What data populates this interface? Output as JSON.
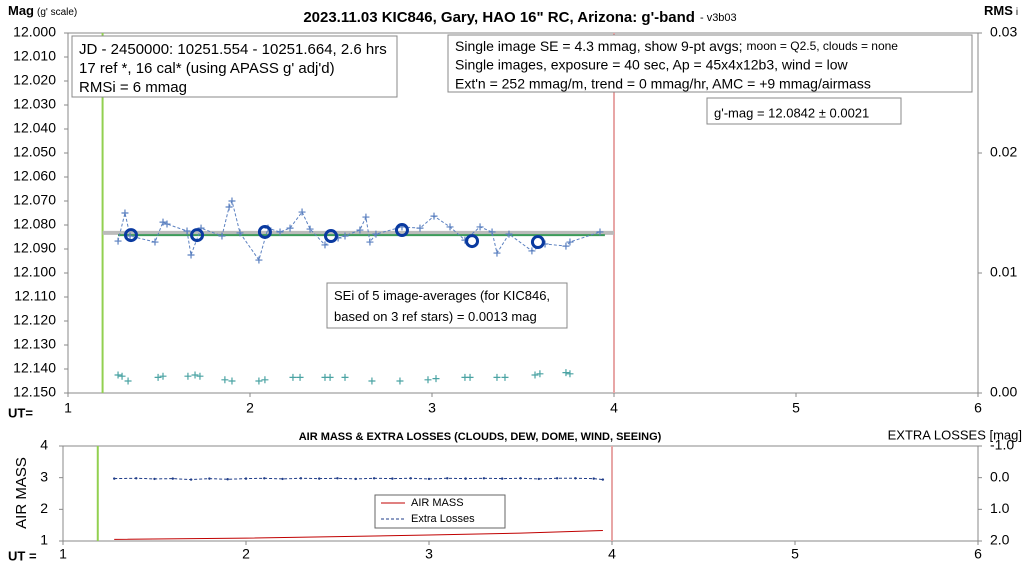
{
  "chart_data": [
    {
      "type": "scatter",
      "title": "2023.11.03 KIC846, Gary, HAO 16\" RC, Arizona: g'-band",
      "subtitle": "- v3b03",
      "ylabel": "Mag",
      "ylabel_note": "(g' scale)",
      "y2label": "RMS",
      "y2label_note": "i",
      "xlabel": "UT=",
      "xlim": [
        1,
        6
      ],
      "xticks": [
        1,
        2,
        3,
        4,
        5,
        6
      ],
      "ylim": [
        12.15,
        12.0
      ],
      "yticks": [
        {
          "value": 12.0,
          "label": "12.000"
        },
        {
          "value": 12.01,
          "label": "12.010"
        },
        {
          "value": 12.02,
          "label": "12.020"
        },
        {
          "value": 12.03,
          "label": "12.030"
        },
        {
          "value": 12.04,
          "label": "12.040"
        },
        {
          "value": 12.05,
          "label": "12.050"
        },
        {
          "value": 12.06,
          "label": "12.060"
        },
        {
          "value": 12.07,
          "label": "12.070"
        },
        {
          "value": 12.08,
          "label": "12.080"
        },
        {
          "value": 12.09,
          "label": "12.090"
        },
        {
          "value": 12.1,
          "label": "12.100"
        },
        {
          "value": 12.11,
          "label": "12.110"
        },
        {
          "value": 12.12,
          "label": "12.120"
        },
        {
          "value": 12.13,
          "label": "12.130"
        },
        {
          "value": 12.14,
          "label": "12.140"
        },
        {
          "value": 12.15,
          "label": "12.150"
        }
      ],
      "y2lim": [
        0,
        0.03
      ],
      "y2ticks": [
        {
          "value": 0,
          "label": "0.00"
        },
        {
          "value": 0.01,
          "label": "0.01"
        },
        {
          "value": 0.02,
          "label": "0.02"
        },
        {
          "value": 0.03,
          "label": "0.03"
        }
      ],
      "vlines": [
        {
          "x": 1.19,
          "color": "#92d050"
        },
        {
          "x": 4.0,
          "color": "#e8a6a6"
        }
      ],
      "series": [
        {
          "color": "#bbbbbb",
          "line": "solid",
          "line_width": 4,
          "x": [
            1.19,
            4.0
          ],
          "values": [
            12.0833,
            12.0833
          ]
        },
        {
          "color": "#3c9b5a",
          "line": "solid",
          "line_width": 2,
          "x": [
            1.275,
            3.95
          ],
          "values": [
            12.0842,
            12.0842
          ]
        },
        {
          "color": "#5b80c0",
          "line": "dashed",
          "marker": "plus",
          "line_width": 1,
          "x": [
            1.275,
            1.313,
            1.341,
            1.478,
            1.522,
            1.544,
            1.654,
            1.676,
            1.731,
            1.846,
            1.885,
            1.901,
            1.945,
            2.049,
            2.099,
            2.165,
            2.22,
            2.286,
            2.33,
            2.412,
            2.484,
            2.522,
            2.604,
            2.637,
            2.659,
            2.692,
            2.835,
            2.934,
            3.011,
            3.099,
            3.181,
            3.264,
            3.33,
            3.357,
            3.423,
            3.549,
            3.621,
            3.736,
            3.758,
            3.923
          ],
          "values": [
            12.0867,
            12.075,
            12.0846,
            12.0871,
            12.0788,
            12.0796,
            12.0825,
            12.0925,
            12.0813,
            12.0846,
            12.0725,
            12.07,
            12.0833,
            12.0946,
            12.0813,
            12.0829,
            12.0813,
            12.0746,
            12.0817,
            12.0883,
            12.0854,
            12.0846,
            12.0821,
            12.0767,
            12.0871,
            12.0838,
            12.0808,
            12.0813,
            12.0763,
            12.0808,
            12.0863,
            12.0808,
            12.0829,
            12.0917,
            12.0838,
            12.0908,
            12.0879,
            12.0888,
            12.0871,
            12.0829
          ]
        },
        {
          "color": "#0a3aa0",
          "marker": "circle",
          "x": [
            1.346,
            1.709,
            2.082,
            2.445,
            2.835,
            3.22,
            3.582
          ],
          "values": [
            12.0842,
            12.0842,
            12.0829,
            12.0846,
            12.0821,
            12.0867,
            12.0871
          ]
        },
        {
          "color": "#4aa3a3",
          "marker": "plus",
          "axis": "y2",
          "x": [
            1.275,
            1.297,
            1.33,
            1.495,
            1.522,
            1.659,
            1.698,
            1.725,
            1.862,
            1.901,
            2.049,
            2.082,
            2.236,
            2.275,
            2.412,
            2.44,
            2.522,
            2.67,
            2.824,
            2.978,
            3.022,
            3.181,
            3.209,
            3.357,
            3.401,
            3.566,
            3.593,
            3.736,
            3.758
          ],
          "values": [
            0.0015,
            0.0014,
            0.001,
            0.0013,
            0.0014,
            0.0014,
            0.0015,
            0.0014,
            0.0011,
            0.001,
            0.001,
            0.0011,
            0.0013,
            0.0013,
            0.0013,
            0.0013,
            0.0013,
            0.001,
            0.001,
            0.0011,
            0.0012,
            0.0013,
            0.0013,
            0.0013,
            0.0013,
            0.0015,
            0.0016,
            0.0017,
            0.0016
          ]
        }
      ],
      "annotations": [
        {
          "lines": [
            "JD - 2450000: 10251.554 - 10251.664, 2.6 hrs",
            "17 ref *, 16 cal* (using APASS g' adj'd)",
            "RMSi = 6 mmag"
          ]
        },
        {
          "lines": [
            [
              "Single image SE = 4.3 mmag, show  9-pt avgs;",
              "moon = Q2.5, clouds = none"
            ],
            "Single images, exposure = 40 sec, Ap = 45x4x12b3, wind = low",
            "Ext'n = 252 mmag/m, trend = 0 mmag/hr, AMC = +9 mmag/airmass"
          ]
        },
        {
          "lines": [
            "g'-mag = 12.0842 ± 0.0021"
          ]
        },
        {
          "lines": [
            "SEi of 5 image-averages (for KIC846,",
            "based on 3 ref stars) = 0.0013 mag"
          ]
        }
      ]
    },
    {
      "type": "line",
      "title": "AIR MASS & EXTRA LOSSES (CLOUDS, DEW, DOME, WIND, SEEING)",
      "ylabel": "AIR MASS",
      "y2label": "EXTRA LOSSES [mag]",
      "xlabel": "UT =",
      "xlim": [
        1,
        6
      ],
      "xticks": [
        1,
        2,
        3,
        4,
        5,
        6
      ],
      "ylim": [
        1,
        4
      ],
      "yticks": [
        1,
        2,
        3,
        4
      ],
      "y2lim": [
        2,
        -1
      ],
      "y2ticks": [
        {
          "value": -1,
          "label": "-1.0"
        },
        {
          "value": 0,
          "label": "0.0"
        },
        {
          "value": 1,
          "label": "1.0"
        },
        {
          "value": 2,
          "label": "2.0"
        }
      ],
      "vlines": [
        {
          "x": 1.19,
          "color": "#92d050"
        },
        {
          "x": 4.0,
          "color": "#e8a6a6"
        }
      ],
      "legend": "bottom-center",
      "series": [
        {
          "name": "AIR MASS",
          "color": "#c00000",
          "line": "solid",
          "line_width": 1,
          "x": [
            1.28,
            2.0,
            2.5,
            3.0,
            3.5,
            3.95
          ],
          "values": [
            1.05,
            1.09,
            1.14,
            1.19,
            1.25,
            1.33
          ]
        },
        {
          "name": "Extra Losses",
          "color": "#1f3c88",
          "line": "dashed",
          "marker": "dot",
          "line_width": 1,
          "axis": "y2",
          "x": [
            1.28,
            1.4,
            1.5,
            1.6,
            1.7,
            1.8,
            1.9,
            2.0,
            2.1,
            2.2,
            2.3,
            2.4,
            2.5,
            2.6,
            2.7,
            2.8,
            2.9,
            3.0,
            3.1,
            3.2,
            3.3,
            3.4,
            3.5,
            3.6,
            3.7,
            3.8,
            3.9,
            3.95
          ],
          "values": [
            0.03,
            0.02,
            0.04,
            0.03,
            0.06,
            0.03,
            0.05,
            0.03,
            0.02,
            0.04,
            0.02,
            0.03,
            0.02,
            0.04,
            0.02,
            0.03,
            0.02,
            0.04,
            0.02,
            0.03,
            0.02,
            0.03,
            0.02,
            0.04,
            0.02,
            0.02,
            0.03,
            0.06
          ]
        }
      ]
    }
  ]
}
